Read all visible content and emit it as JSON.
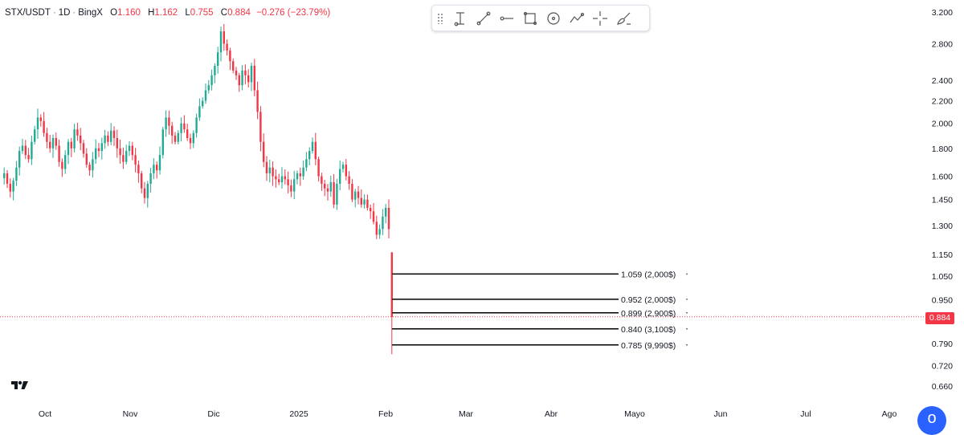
{
  "header": {
    "symbol": "STX/USDT",
    "interval": "1D",
    "exchange": "BingX",
    "open_label": "O",
    "open": "1.160",
    "high_label": "H",
    "high": "1.162",
    "low_label": "L",
    "low": "0.755",
    "close_label": "C",
    "close": "0.884",
    "change": "−0.276 (−23.79%)"
  },
  "toolbar": {
    "tools": [
      "grip-handle",
      "trend-angle-icon",
      "trend-line-icon",
      "horizontal-ray-icon",
      "rectangle-icon",
      "circle-icon",
      "path-icon",
      "crosshair-icon",
      "brush-icon"
    ]
  },
  "last_price": "0.884",
  "avatar_letter": "o",
  "colors": {
    "up": "#22ab94",
    "down": "#f23645",
    "price_line": "#f23645",
    "grid": "#f0f3fa",
    "axis_text": "#131722"
  },
  "chart_data": {
    "type": "candlestick",
    "title": "",
    "y_scale": "log",
    "yaxis_ticks": [
      "3.200",
      "2.800",
      "2.400",
      "2.200",
      "2.000",
      "1.800",
      "1.600",
      "1.450",
      "1.300",
      "1.150",
      "1.050",
      "0.950",
      "0.790",
      "0.720",
      "0.660"
    ],
    "xaxis_ticks": [
      "Oct",
      "Nov",
      "Dic",
      "2025",
      "Feb",
      "Mar",
      "Abr",
      "Mayo",
      "Jun",
      "Jul",
      "Ago"
    ],
    "grid": false,
    "current_price": 0.884,
    "closes": [
      1.62,
      1.55,
      1.5,
      1.57,
      1.66,
      1.78,
      1.82,
      1.75,
      1.72,
      1.85,
      1.95,
      2.05,
      2.02,
      1.92,
      1.85,
      1.8,
      1.88,
      1.82,
      1.7,
      1.65,
      1.75,
      1.85,
      1.8,
      1.95,
      1.9,
      1.84,
      1.76,
      1.68,
      1.64,
      1.72,
      1.8,
      1.78,
      1.84,
      1.9,
      1.85,
      1.94,
      1.88,
      1.8,
      1.75,
      1.7,
      1.78,
      1.82,
      1.75,
      1.68,
      1.62,
      1.52,
      1.46,
      1.55,
      1.62,
      1.68,
      1.64,
      1.75,
      1.95,
      2.05,
      1.98,
      1.9,
      1.85,
      1.92,
      2.0,
      1.95,
      1.88,
      1.84,
      1.92,
      2.05,
      2.15,
      2.2,
      2.3,
      2.35,
      2.45,
      2.55,
      2.7,
      2.95,
      2.8,
      2.72,
      2.6,
      2.5,
      2.45,
      2.35,
      2.5,
      2.45,
      2.38,
      2.55,
      2.3,
      2.1,
      1.85,
      1.7,
      1.62,
      1.66,
      1.6,
      1.58,
      1.56,
      1.6,
      1.58,
      1.54,
      1.5,
      1.58,
      1.62,
      1.6,
      1.66,
      1.72,
      1.78,
      1.85,
      1.72,
      1.6,
      1.55,
      1.52,
      1.5,
      1.56,
      1.42,
      1.55,
      1.65,
      1.68,
      1.6,
      1.55,
      1.45,
      1.5,
      1.46,
      1.42,
      1.45,
      1.4,
      1.38,
      1.32,
      1.25,
      1.28,
      1.35,
      1.4,
      1.28,
      0.884
    ],
    "last_candle": {
      "open": 1.16,
      "high": 1.162,
      "low": 0.755,
      "close": 0.884
    },
    "orders": [
      {
        "price": 1.059,
        "label": "1.059 (2,000$)"
      },
      {
        "price": 0.952,
        "label": "0.952 (2,000$)"
      },
      {
        "price": 0.899,
        "label": "0.899 (2,900$)"
      },
      {
        "price": 0.84,
        "label": "0.840 (3,100$)"
      },
      {
        "price": 0.785,
        "label": "0.785 (9,990$)"
      }
    ]
  }
}
